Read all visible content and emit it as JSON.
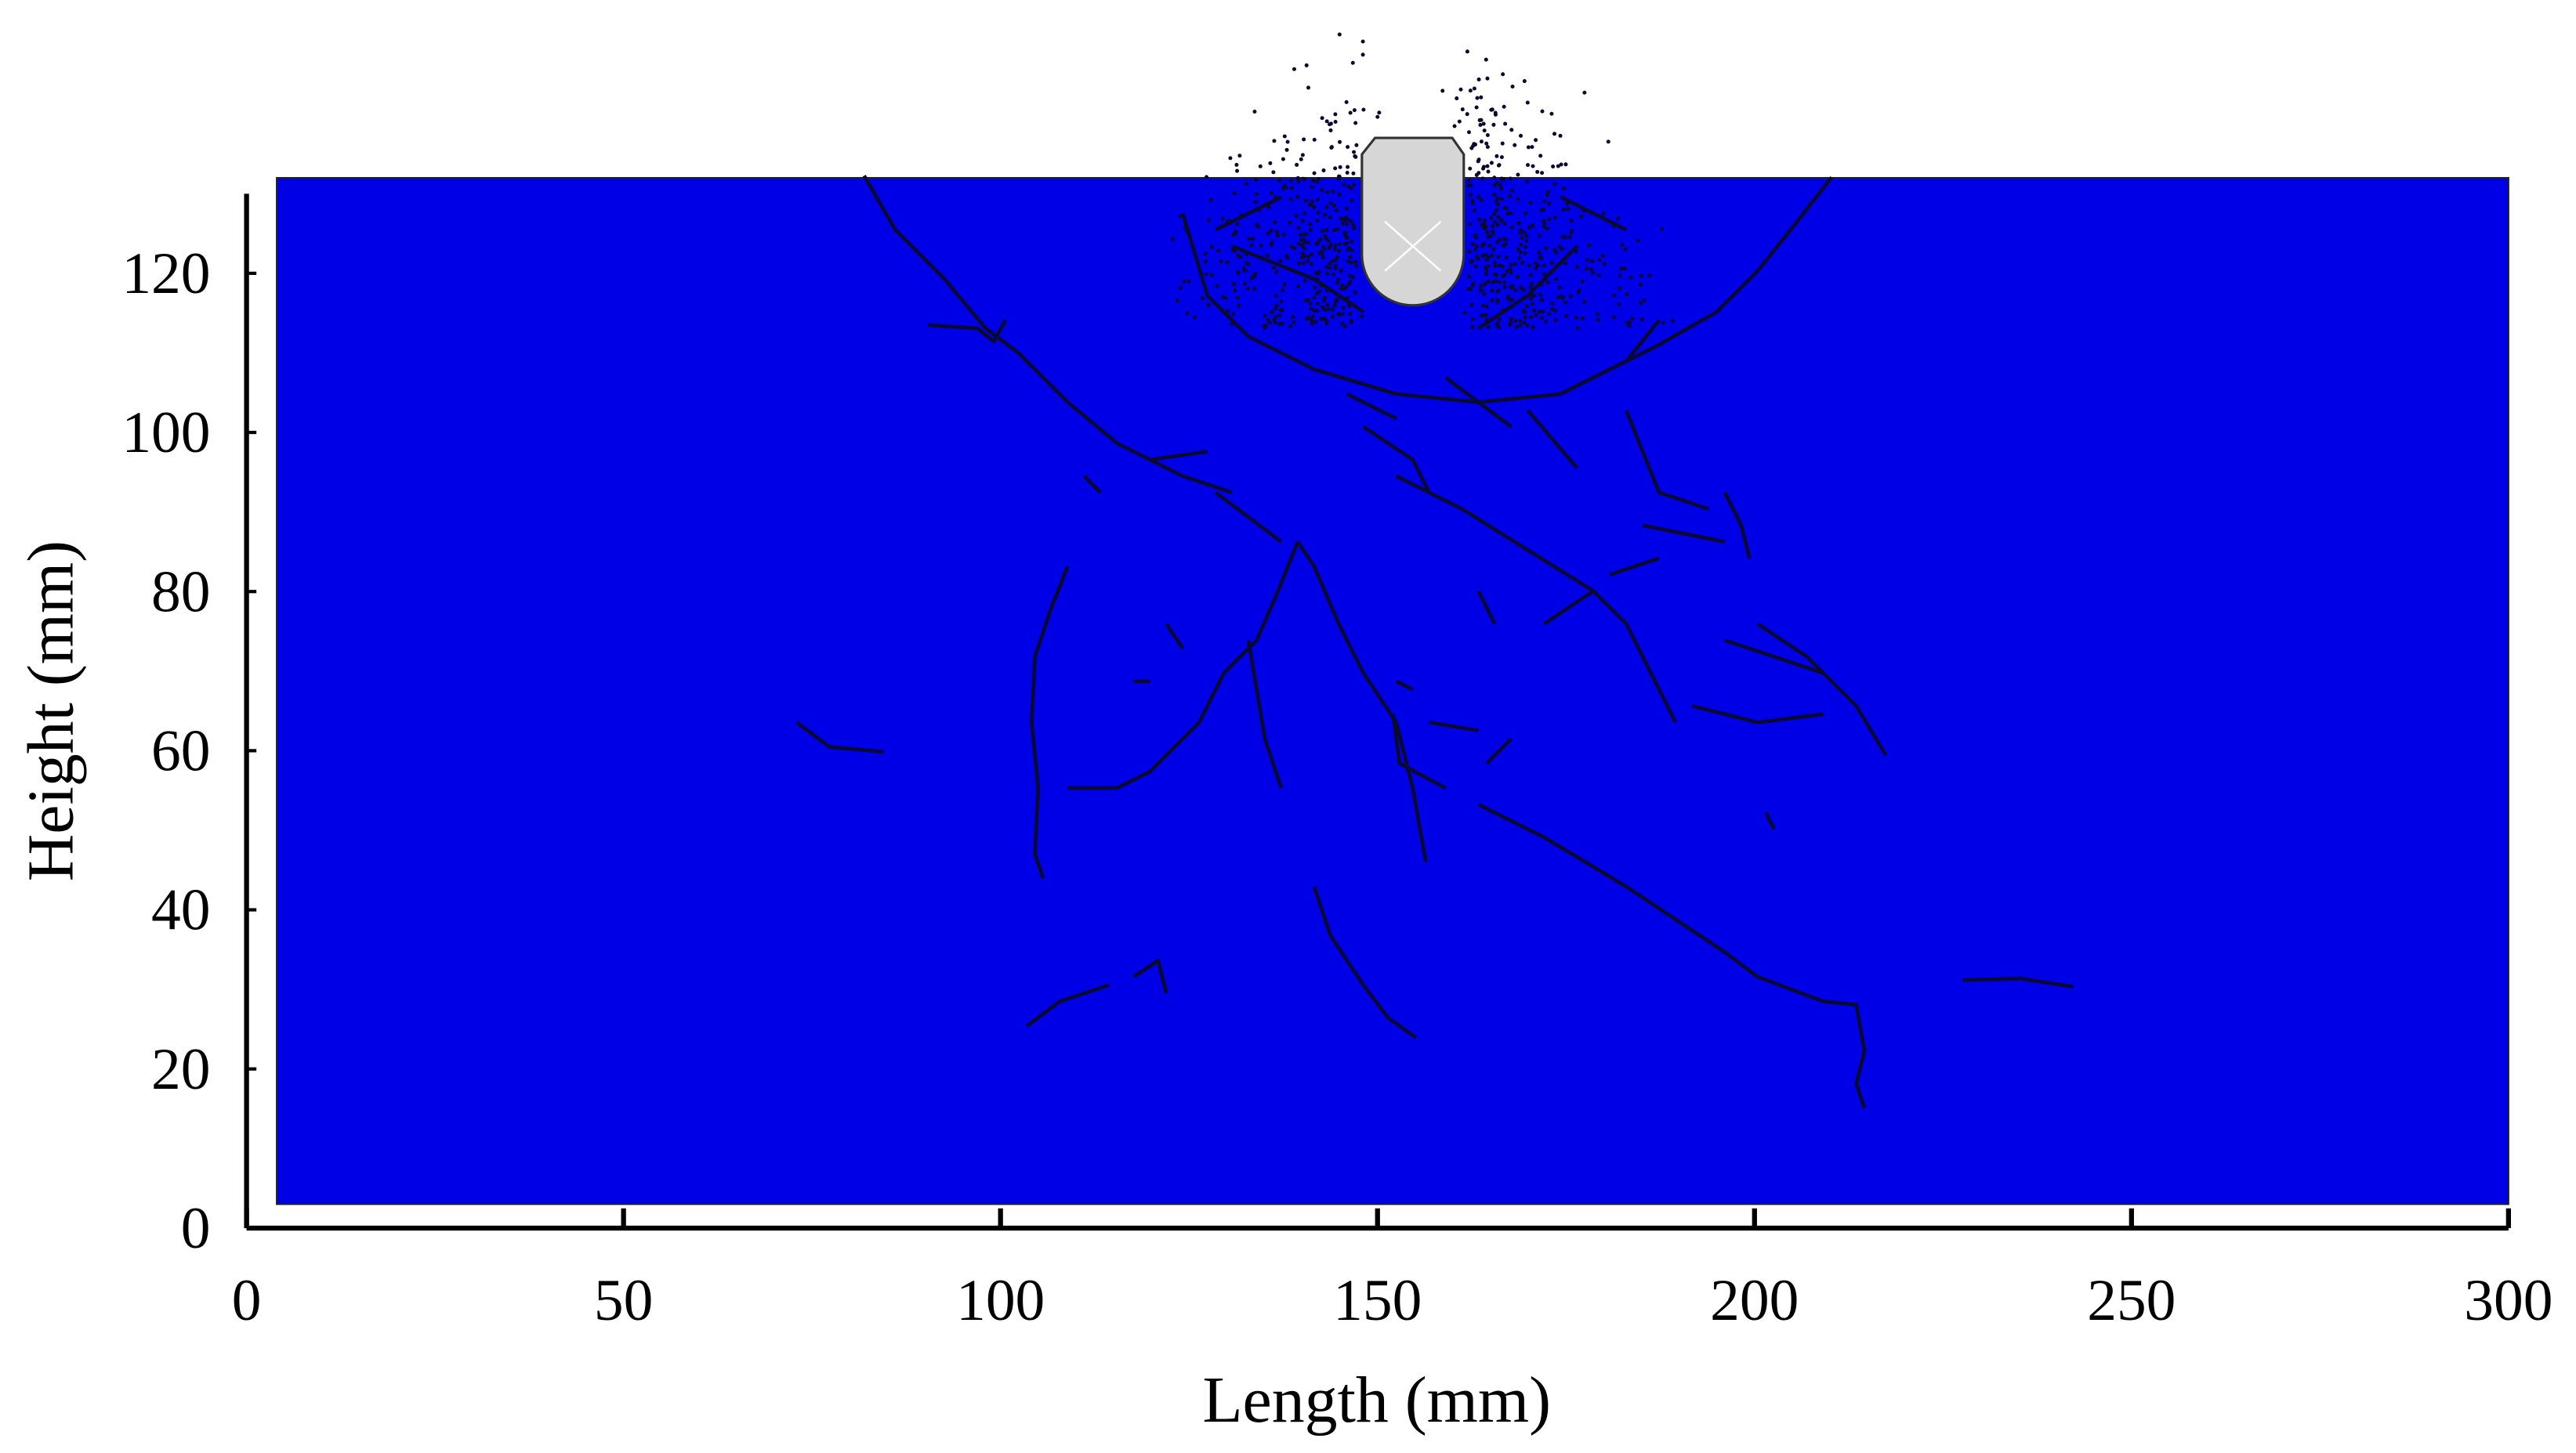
{
  "chart_data": {
    "type": "area",
    "x_label": "Length (mm)",
    "y_label": "Height (mm)",
    "x": [
      4,
      300
    ],
    "base": 3,
    "series": [
      {
        "color": "#0000e6",
        "values": [
          132,
          132
        ]
      }
    ],
    "xlim": [
      0,
      300
    ],
    "ylim": [
      0,
      130
    ],
    "xticks": [
      0,
      50,
      100,
      150,
      200,
      250,
      300
    ],
    "yticks": [
      0,
      20,
      40,
      60,
      80,
      100,
      120
    ]
  }
}
